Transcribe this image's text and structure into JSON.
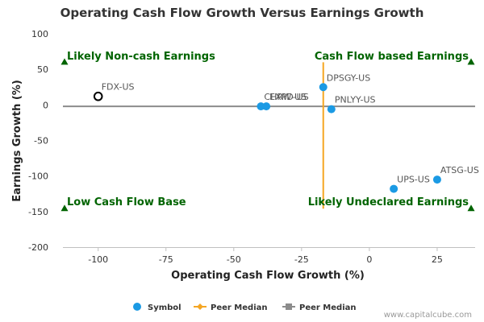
{
  "chart_data": {
    "type": "scatter",
    "title": "Operating Cash Flow Growth Versus Earnings Growth",
    "xlabel": "Operating Cash Flow Growth (%)",
    "ylabel": "Earnings Growth (%)",
    "xlim": [
      -113,
      39
    ],
    "ylim": [
      -200,
      100
    ],
    "x_ticks": [
      -100,
      -75,
      -50,
      -25,
      0,
      25
    ],
    "y_ticks": [
      100,
      50,
      0,
      -50,
      -100,
      -150,
      -200
    ],
    "grid": false,
    "points": [
      {
        "label": "FDX-US",
        "x": -100,
        "y": 12,
        "style": "highlight"
      },
      {
        "label": "CHRW-US",
        "x": -40,
        "y": -2,
        "style": "peer"
      },
      {
        "label": "EXPD-US",
        "x": -38,
        "y": -2,
        "style": "peer"
      },
      {
        "label": "DPSGY-US",
        "x": -17,
        "y": 25,
        "style": "peer"
      },
      {
        "label": "PNLYY-US",
        "x": -14,
        "y": -6,
        "style": "peer"
      },
      {
        "label": "ATSG-US",
        "x": 25,
        "y": -105,
        "style": "peer"
      },
      {
        "label": "UPS-US",
        "x": 9,
        "y": -118,
        "style": "peer"
      }
    ],
    "peer_median_x": -17,
    "peer_median_x_range": [
      -146,
      60
    ],
    "peer_median_y": -2,
    "quadrant_labels": {
      "top_left": "Likely Non-cash Earnings",
      "top_right": "Cash Flow based Earnings",
      "bottom_left": "Low Cash Flow Base",
      "bottom_right": "Likely Undeclared Earnings"
    },
    "legend": {
      "placement": "bottom",
      "items": [
        {
          "label": "Symbol",
          "marker": "circle",
          "color": "#1b9ae4"
        },
        {
          "label": "Peer Median",
          "marker": "diamond-line",
          "color": "#f5a623"
        },
        {
          "label": "Peer Median",
          "marker": "square-line",
          "color": "#8c8c8c"
        }
      ]
    },
    "colors": {
      "symbol": "#1b9ae4",
      "peer_median_vertical": "#f5a623",
      "peer_median_horizontal": "#8c8c8c",
      "quadrant_text": "#006400"
    }
  },
  "credit": "www.capitalcube.com"
}
